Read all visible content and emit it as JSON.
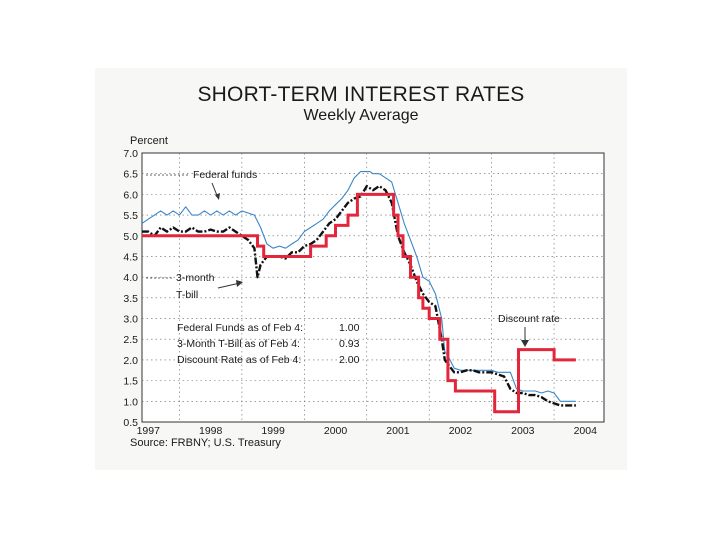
{
  "header": {
    "title": "SHORT-TERM INTEREST RATES",
    "subtitle": "Weekly Average"
  },
  "source": "Source: FRBNY; U.S. Treasury",
  "chart_data": {
    "type": "line",
    "title": "SHORT-TERM INTEREST RATES",
    "subtitle": "Weekly Average",
    "ylabel": "Percent",
    "xlabel": "",
    "xlim": [
      1996.9,
      2004.3
    ],
    "ylim": [
      0.5,
      7.0
    ],
    "y_ticks": [
      "7.0",
      "6.5",
      "6.0",
      "5.5",
      "5.0",
      "4.5",
      "4.0",
      "3.5",
      "3.0",
      "2.5",
      "2.0",
      "1.5",
      "1.0",
      "0.5"
    ],
    "x_ticks": [
      "1997",
      "1998",
      "1999",
      "2000",
      "2001",
      "2002",
      "2003",
      "2004"
    ],
    "grid": "dotted",
    "colors": {
      "federal_funds": "#3a86c8",
      "t_bill": "#111111",
      "discount_rate": "#e3263b"
    },
    "series": [
      {
        "name": "Federal funds",
        "x": [
          1996.9,
          1997.0,
          1997.1,
          1997.2,
          1997.3,
          1997.4,
          1997.5,
          1997.6,
          1997.7,
          1997.8,
          1997.9,
          1998.0,
          1998.1,
          1998.2,
          1998.3,
          1998.4,
          1998.5,
          1998.6,
          1998.7,
          1998.8,
          1998.9,
          1999.0,
          1999.1,
          1999.2,
          1999.3,
          1999.4,
          1999.5,
          1999.6,
          1999.7,
          1999.8,
          1999.9,
          2000.0,
          2000.1,
          2000.2,
          2000.3,
          2000.4,
          2000.5,
          2000.55,
          2000.6,
          2000.7,
          2000.8,
          2000.9,
          2001.0,
          2001.1,
          2001.2,
          2001.3,
          2001.4,
          2001.5,
          2001.6,
          2001.7,
          2001.75,
          2001.8,
          2001.9,
          2002.0,
          2002.1,
          2002.2,
          2002.3,
          2002.4,
          2002.5,
          2002.6,
          2002.7,
          2002.8,
          2002.9,
          2003.0,
          2003.1,
          2003.2,
          2003.3,
          2003.4,
          2003.5,
          2003.6,
          2003.7,
          2003.85
        ],
        "values": [
          5.3,
          5.4,
          5.5,
          5.6,
          5.5,
          5.6,
          5.5,
          5.7,
          5.5,
          5.5,
          5.6,
          5.5,
          5.6,
          5.5,
          5.6,
          5.5,
          5.6,
          5.55,
          5.5,
          5.2,
          4.8,
          4.7,
          4.75,
          4.7,
          4.8,
          4.9,
          5.1,
          5.2,
          5.3,
          5.4,
          5.6,
          5.75,
          5.9,
          6.1,
          6.4,
          6.55,
          6.55,
          6.55,
          6.5,
          6.5,
          6.4,
          6.3,
          5.8,
          5.3,
          4.9,
          4.5,
          4.0,
          3.9,
          3.6,
          3.0,
          2.2,
          2.1,
          1.8,
          1.75,
          1.75,
          1.75,
          1.75,
          1.75,
          1.75,
          1.7,
          1.7,
          1.7,
          1.3,
          1.25,
          1.25,
          1.25,
          1.2,
          1.25,
          1.2,
          1.0,
          1.0,
          1.0
        ]
      },
      {
        "name": "3-month T-bill",
        "x": [
          1996.9,
          1997.0,
          1997.1,
          1997.2,
          1997.3,
          1997.4,
          1997.5,
          1997.6,
          1997.7,
          1997.8,
          1997.9,
          1998.0,
          1998.1,
          1998.2,
          1998.3,
          1998.4,
          1998.5,
          1998.6,
          1998.7,
          1998.75,
          1998.8,
          1998.9,
          1999.0,
          1999.1,
          1999.2,
          1999.3,
          1999.4,
          1999.5,
          1999.6,
          1999.7,
          1999.8,
          1999.9,
          2000.0,
          2000.1,
          2000.2,
          2000.3,
          2000.4,
          2000.5,
          2000.6,
          2000.7,
          2000.8,
          2000.9,
          2001.0,
          2001.1,
          2001.2,
          2001.3,
          2001.4,
          2001.5,
          2001.6,
          2001.7,
          2001.75,
          2001.8,
          2001.9,
          2002.0,
          2002.1,
          2002.2,
          2002.3,
          2002.4,
          2002.5,
          2002.6,
          2002.7,
          2002.8,
          2002.9,
          2003.0,
          2003.1,
          2003.2,
          2003.3,
          2003.4,
          2003.5,
          2003.6,
          2003.7,
          2003.85
        ],
        "values": [
          5.1,
          5.1,
          5.0,
          5.2,
          5.1,
          5.2,
          5.1,
          5.1,
          5.2,
          5.1,
          5.1,
          5.15,
          5.1,
          5.1,
          5.2,
          5.1,
          5.0,
          4.9,
          4.7,
          4.0,
          4.3,
          4.5,
          4.5,
          4.5,
          4.45,
          4.6,
          4.6,
          4.75,
          4.8,
          4.9,
          5.1,
          5.3,
          5.4,
          5.6,
          5.8,
          5.9,
          5.95,
          6.2,
          6.1,
          6.2,
          6.1,
          5.8,
          5.0,
          4.6,
          4.3,
          3.9,
          3.6,
          3.4,
          3.3,
          2.5,
          2.0,
          1.9,
          1.7,
          1.7,
          1.75,
          1.75,
          1.7,
          1.7,
          1.7,
          1.65,
          1.6,
          1.3,
          1.2,
          1.2,
          1.15,
          1.15,
          1.1,
          1.0,
          0.95,
          0.9,
          0.9,
          0.9
        ]
      },
      {
        "name": "Discount rate",
        "x": [
          1996.9,
          1998.75,
          1998.75,
          1998.85,
          1998.85,
          1998.92,
          1998.92,
          1999.45,
          1999.45,
          1999.6,
          1999.6,
          1999.85,
          1999.85,
          2000.0,
          2000.0,
          2000.2,
          2000.2,
          2000.35,
          2000.35,
          2000.93,
          2000.93,
          2001.0,
          2001.0,
          2001.08,
          2001.08,
          2001.2,
          2001.2,
          2001.33,
          2001.33,
          2001.4,
          2001.4,
          2001.5,
          2001.5,
          2001.67,
          2001.67,
          2001.8,
          2001.8,
          2001.92,
          2001.92,
          2002.38,
          2002.38,
          2002.55,
          2002.55,
          2002.93,
          2002.93,
          2003.5,
          2003.5,
          2003.85
        ],
        "values": [
          5.0,
          5.0,
          4.75,
          4.75,
          4.5,
          4.5,
          4.5,
          4.5,
          4.5,
          4.5,
          4.75,
          4.75,
          5.0,
          5.0,
          5.25,
          5.25,
          5.5,
          5.5,
          6.0,
          6.0,
          5.5,
          5.5,
          5.0,
          5.0,
          4.5,
          4.5,
          4.0,
          4.0,
          3.5,
          3.5,
          3.25,
          3.25,
          3.0,
          3.0,
          2.5,
          2.5,
          1.5,
          1.5,
          1.25,
          1.25,
          1.25,
          1.25,
          0.75,
          0.75,
          2.25,
          2.25,
          2.0,
          2.0
        ]
      }
    ],
    "legend": [
      {
        "label": "Federal funds",
        "position": "top-left"
      },
      {
        "label": "3-month T-bill",
        "position": "left"
      },
      {
        "label": "Discount rate",
        "position": "right"
      }
    ],
    "annotations": {
      "federal_funds_label": "Federal funds",
      "tbill_label_line1": "3-month",
      "tbill_label_line2": "T-bill",
      "discount_label": "Discount rate",
      "stats": [
        {
          "label": "Federal Funds as of Feb 4:",
          "value": "1.00"
        },
        {
          "label": "3-Month T-Bill as of Feb 4:",
          "value": "0.93"
        },
        {
          "label": "Discount Rate as of Feb 4:",
          "value": "2.00"
        }
      ]
    }
  }
}
